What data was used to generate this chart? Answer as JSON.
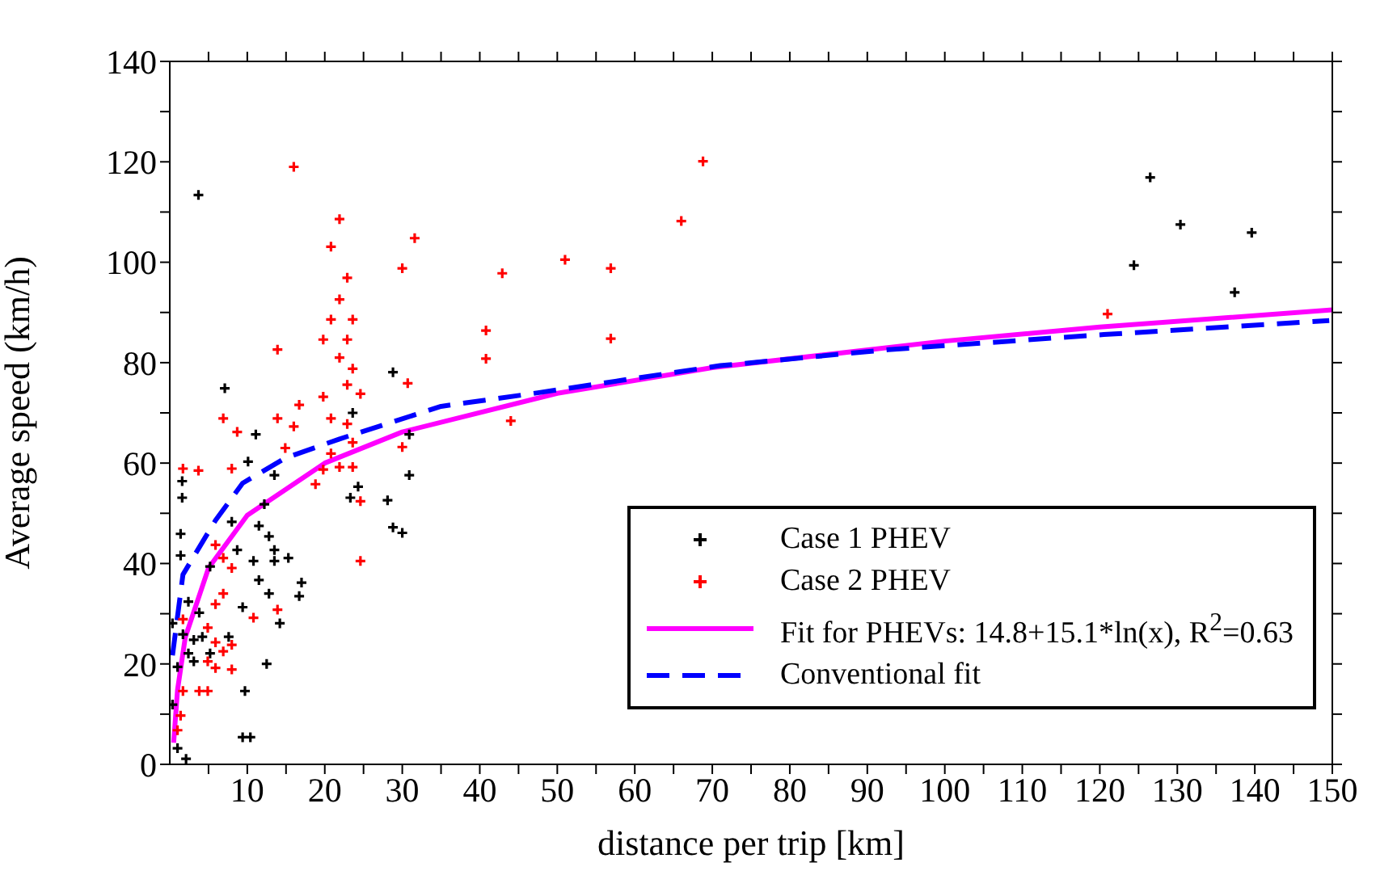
{
  "chart_data": {
    "type": "scatter",
    "xlabel": "distance per trip [km]",
    "ylabel": "Average speed (km/h)",
    "xlim": [
      0,
      150
    ],
    "ylim": [
      0,
      140
    ],
    "xticks": [
      {
        "value": 5,
        "label": null
      },
      10,
      {
        "value": 15,
        "label": null
      },
      20,
      {
        "value": 25,
        "label": null
      },
      30,
      {
        "value": 35,
        "label": null
      },
      40,
      {
        "value": 45,
        "label": null
      },
      50,
      {
        "value": 55,
        "label": null
      },
      60,
      {
        "value": 65,
        "label": null
      },
      70,
      {
        "value": 75,
        "label": null
      },
      80,
      {
        "value": 85,
        "label": null
      },
      90,
      {
        "value": 95,
        "label": null
      },
      100,
      {
        "value": 105,
        "label": null
      },
      110,
      {
        "value": 115,
        "label": null
      },
      120,
      {
        "value": 125,
        "label": null
      },
      130,
      {
        "value": 135,
        "label": null
      },
      140,
      {
        "value": 145,
        "label": null
      },
      150
    ],
    "yticks": [
      0,
      {
        "value": 10,
        "label": null
      },
      20,
      {
        "value": 30,
        "label": null
      },
      40,
      {
        "value": 50,
        "label": null
      },
      60,
      {
        "value": 70,
        "label": null
      },
      80,
      {
        "value": 90,
        "label": null
      },
      100,
      {
        "value": 110,
        "label": null
      },
      120,
      {
        "value": 130,
        "label": null
      },
      140
    ],
    "grid": false,
    "legend": "bottom right",
    "series": [
      {
        "name": "Case 1 PHEV",
        "color": "#000000",
        "marker": "cross",
        "x": [
          3.7,
          28.8,
          7.1,
          23.6,
          30.9,
          11.1,
          10.1,
          13.5,
          30.9,
          24.3,
          23.3,
          28.1,
          28.8,
          30.0,
          1.6,
          1.6,
          1.4,
          1.4,
          8.0,
          12.2,
          11.5,
          12.8,
          8.7,
          13.5,
          10.8,
          13.5,
          15.3,
          5.2,
          11.5,
          17.0,
          12.8,
          16.7,
          9.4,
          2.4,
          3.8,
          14.2,
          7.6,
          3.1,
          2.4,
          5.2,
          12.5,
          1.0,
          0.35,
          0.35,
          9.7,
          9.4,
          10.4,
          1.0,
          2.1,
          3.1,
          1.7,
          4.2,
          126.5,
          130.4,
          139.6,
          124.4,
          137.4
        ],
        "values": [
          113.4,
          78.1,
          74.9,
          70.0,
          65.7,
          65.7,
          60.3,
          57.6,
          57.6,
          55.3,
          53.1,
          52.6,
          47.2,
          46.1,
          56.4,
          53.1,
          45.9,
          41.6,
          48.3,
          51.8,
          47.5,
          45.4,
          42.7,
          42.7,
          40.5,
          40.5,
          41.1,
          39.4,
          36.7,
          36.2,
          34.0,
          33.5,
          31.3,
          32.4,
          30.2,
          28.1,
          25.4,
          24.8,
          22.1,
          22.1,
          20.0,
          19.4,
          28.1,
          11.9,
          14.6,
          5.4,
          5.4,
          3.2,
          1.1,
          20.5,
          25.9,
          25.4,
          116.9,
          107.5,
          105.9,
          99.4,
          94.0
        ]
      },
      {
        "name": "Case 2 PHEV",
        "color": "#ff0000",
        "marker": "cross",
        "x": [
          16.0,
          21.9,
          20.8,
          31.6,
          22.9,
          30.0,
          21.9,
          20.8,
          23.6,
          19.8,
          22.9,
          21.9,
          23.6,
          13.9,
          22.9,
          30.7,
          19.8,
          24.6,
          16.7,
          6.9,
          13.9,
          20.8,
          22.9,
          8.7,
          16.0,
          14.9,
          23.6,
          30.0,
          20.8,
          1.7,
          3.7,
          8.0,
          19.8,
          21.9,
          23.6,
          18.8,
          24.6,
          24.6,
          5.9,
          6.9,
          8.0,
          6.9,
          5.9,
          13.9,
          10.8,
          1.7,
          4.9,
          5.9,
          8.0,
          6.9,
          4.9,
          5.9,
          8.0,
          3.8,
          4.9,
          1.7,
          1.4,
          1.0,
          68.8,
          66.0,
          51.0,
          56.9,
          42.9,
          40.8,
          40.8,
          56.9,
          44.0,
          121.0
        ],
        "values": [
          119.0,
          108.6,
          103.1,
          104.8,
          96.9,
          98.8,
          92.6,
          88.6,
          88.6,
          84.6,
          84.6,
          81.0,
          78.8,
          82.6,
          75.6,
          75.9,
          73.2,
          73.8,
          71.6,
          68.9,
          68.9,
          68.9,
          67.8,
          66.2,
          67.3,
          63.0,
          64.1,
          63.2,
          61.9,
          58.9,
          58.5,
          58.9,
          58.7,
          59.2,
          59.2,
          55.8,
          52.4,
          40.5,
          43.7,
          41.1,
          39.1,
          34.0,
          31.9,
          30.8,
          29.2,
          28.9,
          27.2,
          24.3,
          23.8,
          22.5,
          20.5,
          19.2,
          18.9,
          14.6,
          14.6,
          14.6,
          9.7,
          6.8,
          120.1,
          108.2,
          100.5,
          98.8,
          97.8,
          86.4,
          80.8,
          84.8,
          68.4,
          89.7
        ]
      },
      {
        "name": "Fit for PHEVs: 14.8+15.1*ln(x), R$^{2}$=0.63",
        "type": "line",
        "color": "#ff00ff",
        "marker": "none",
        "line_style": "solid",
        "x": [
          0.5,
          1,
          2,
          5,
          10,
          20,
          30,
          50,
          70,
          100,
          120,
          150
        ],
        "values": [
          4.3,
          14.8,
          25.3,
          39.1,
          49.6,
          60.0,
          66.2,
          73.9,
          79.0,
          84.3,
          87.1,
          90.5
        ]
      },
      {
        "name": "Conventional fit",
        "type": "line",
        "color": "#0000ff",
        "marker": "none",
        "line_style": "dashed",
        "x": [
          0.35,
          1.7,
          5.9,
          9.4,
          14.9,
          21.9,
          35,
          47.5,
          71,
          92.7,
          120.5,
          149.6
        ],
        "values": [
          21.7,
          37.8,
          48.6,
          56,
          61,
          64.8,
          71.3,
          74,
          79.4,
          82.6,
          85.6,
          88.4
        ]
      }
    ]
  }
}
